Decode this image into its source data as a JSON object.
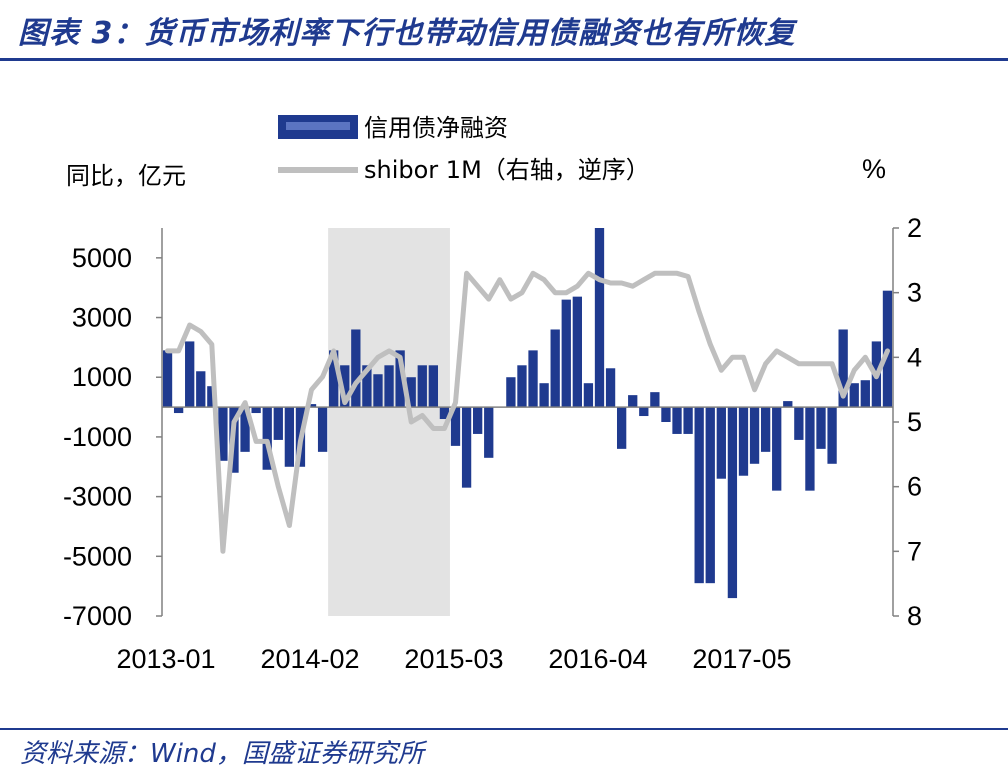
{
  "header": {
    "title": "图表 3：货币市场利率下行也带动信用债融资也有所恢复"
  },
  "footer": {
    "source": "资料来源：Wind，国盛证券研究所"
  },
  "chart_data": {
    "type": "bar+line",
    "left_axis_unit": "同比，亿元",
    "right_axis_unit": "%",
    "legend": [
      {
        "name": "信用债净融资",
        "type": "bar",
        "color": "#1f3a8f"
      },
      {
        "name": "shibor 1M（右轴，逆序）",
        "type": "line",
        "color": "#bfbfbf"
      }
    ],
    "legend_placement": "top-center",
    "left_ylim": [
      -7000,
      6000
    ],
    "left_ticks": [
      5000,
      3000,
      1000,
      -1000,
      -3000,
      -5000,
      -7000
    ],
    "left_tick_labels": [
      "5000",
      "3000",
      "1000",
      "-1000",
      "-3000",
      "-5000",
      "-7000"
    ],
    "right_ylim": [
      8,
      2
    ],
    "right_reversed": true,
    "right_ticks": [
      2,
      3,
      4,
      5,
      6,
      7,
      8
    ],
    "right_tick_labels": [
      "2",
      "3",
      "4",
      "5",
      "6",
      "7",
      "8"
    ],
    "x_tick_labels": [
      "2013-01",
      "2014-02",
      "2015-03",
      "2016-04",
      "2017-05"
    ],
    "x_tick_index": [
      0,
      13,
      26,
      39,
      52
    ],
    "shaded_region": {
      "start_index": 15,
      "end_index": 25,
      "color": "#e3e3e3"
    },
    "months": [
      "2013-01",
      "2013-02",
      "2013-03",
      "2013-04",
      "2013-05",
      "2013-06",
      "2013-07",
      "2013-08",
      "2013-09",
      "2013-10",
      "2013-11",
      "2013-12",
      "2014-01",
      "2014-02",
      "2014-03",
      "2014-04",
      "2014-05",
      "2014-06",
      "2014-07",
      "2014-08",
      "2014-09",
      "2014-10",
      "2014-11",
      "2014-12",
      "2015-01",
      "2015-02",
      "2015-03",
      "2015-04",
      "2015-05",
      "2015-06",
      "2015-07",
      "2015-08",
      "2015-09",
      "2015-10",
      "2015-11",
      "2015-12",
      "2016-01",
      "2016-02",
      "2016-03",
      "2016-04",
      "2016-05",
      "2016-06",
      "2016-07",
      "2016-08",
      "2016-09",
      "2016-10",
      "2016-11",
      "2016-12",
      "2017-01",
      "2017-02",
      "2017-03",
      "2017-04",
      "2017-05",
      "2017-06",
      "2017-07",
      "2017-08",
      "2017-09",
      "2017-10",
      "2017-11",
      "2017-12",
      "2018-01",
      "2018-02",
      "2018-03",
      "2018-04",
      "2018-05",
      "2018-06"
    ],
    "series_bar": [
      1900,
      -200,
      2200,
      1200,
      700,
      -1800,
      -2200,
      -1500,
      -200,
      -2100,
      -1100,
      -2000,
      -2000,
      100,
      -1500,
      1900,
      1400,
      2600,
      1400,
      1100,
      1400,
      1900,
      1000,
      1400,
      1400,
      -400,
      -1300,
      -2700,
      -900,
      -1700,
      0,
      1000,
      1400,
      1900,
      800,
      2600,
      3600,
      3700,
      800,
      6000,
      1300,
      -1400,
      400,
      -300,
      500,
      -500,
      -900,
      -900,
      -5900,
      -5900,
      -2400,
      -6400,
      -2300,
      -1900,
      -1500,
      -2800,
      200,
      -1100,
      -2800,
      -1400,
      -1900,
      2600,
      800,
      900,
      2200,
      3900
    ]
  }
}
